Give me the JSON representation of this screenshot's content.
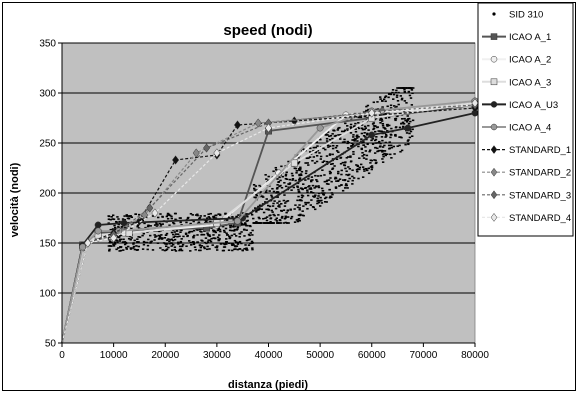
{
  "chart_data": {
    "type": "scatter",
    "title": "speed (nodi)",
    "xlabel": "distanza (piedi)",
    "ylabel": "velocità (nodi)",
    "xlim": [
      0,
      80000
    ],
    "ylim": [
      50,
      350
    ],
    "xticks": [
      0,
      10000,
      20000,
      30000,
      40000,
      50000,
      60000,
      70000,
      80000
    ],
    "yticks": [
      50,
      100,
      150,
      200,
      250,
      300,
      350
    ],
    "grid": "horizontal",
    "plot_background": "#c0c0c0",
    "legend_position": "right",
    "scatter": {
      "name": "SID 310",
      "color": "#000000",
      "clusters": [
        {
          "x_range": [
            9000,
            37000
          ],
          "y_range": [
            142,
            180
          ]
        },
        {
          "x_range": [
            37000,
            68000
          ],
          "y_range": [
            170,
            305
          ],
          "trend": [
            [
              37000,
              175
            ],
            [
              68000,
              285
            ]
          ]
        }
      ]
    },
    "series": [
      {
        "name": "ICAO A_1",
        "color": "#555555",
        "style": "solid",
        "marker": "square",
        "points": [
          [
            0,
            50
          ],
          [
            4000,
            148
          ],
          [
            7000,
            160
          ],
          [
            12000,
            162
          ],
          [
            28000,
            165
          ],
          [
            34000,
            170
          ],
          [
            40000,
            262
          ],
          [
            80000,
            288
          ]
        ]
      },
      {
        "name": "ICAO A_2",
        "color": "#f0f0f0",
        "style": "solid",
        "marker": "circle",
        "points": [
          [
            0,
            50
          ],
          [
            4000,
            145
          ],
          [
            7000,
            155
          ],
          [
            12000,
            160
          ],
          [
            30000,
            168
          ],
          [
            42000,
            220
          ],
          [
            55000,
            278
          ],
          [
            80000,
            288
          ]
        ]
      },
      {
        "name": "ICAO A_3",
        "color": "#dddddd",
        "style": "solid",
        "marker": "square",
        "points": [
          [
            0,
            50
          ],
          [
            4000,
            146
          ],
          [
            7000,
            158
          ],
          [
            13000,
            160
          ],
          [
            30000,
            170
          ],
          [
            45000,
            230
          ],
          [
            60000,
            275
          ],
          [
            80000,
            290
          ]
        ]
      },
      {
        "name": "ICAO A_U3",
        "color": "#222222",
        "style": "solid",
        "marker": "circle",
        "points": [
          [
            0,
            50
          ],
          [
            4000,
            148
          ],
          [
            7000,
            168
          ],
          [
            12000,
            170
          ],
          [
            35000,
            175
          ],
          [
            60000,
            258
          ],
          [
            67000,
            265
          ],
          [
            80000,
            280
          ]
        ]
      },
      {
        "name": "ICAO A_4",
        "color": "#999999",
        "style": "solid",
        "marker": "circle",
        "points": [
          [
            0,
            50
          ],
          [
            4000,
            146
          ],
          [
            7000,
            162
          ],
          [
            11000,
            162
          ],
          [
            34000,
            172
          ],
          [
            50000,
            265
          ],
          [
            60000,
            282
          ],
          [
            80000,
            292
          ]
        ]
      },
      {
        "name": "STANDARD_1",
        "color": "#111111",
        "style": "dashed",
        "marker": "diamond",
        "points": [
          [
            0,
            50
          ],
          [
            5000,
            150
          ],
          [
            10000,
            160
          ],
          [
            15000,
            172
          ],
          [
            22000,
            233
          ],
          [
            30000,
            238
          ],
          [
            34000,
            268
          ],
          [
            45000,
            272
          ],
          [
            80000,
            285
          ]
        ]
      },
      {
        "name": "STANDARD_2",
        "color": "#888888",
        "style": "dashed",
        "marker": "diamond",
        "points": [
          [
            0,
            50
          ],
          [
            5000,
            150
          ],
          [
            10000,
            158
          ],
          [
            16000,
            178
          ],
          [
            26000,
            240
          ],
          [
            38000,
            270
          ],
          [
            60000,
            280
          ],
          [
            80000,
            290
          ]
        ]
      },
      {
        "name": "STANDARD_3",
        "color": "#666666",
        "style": "dashed",
        "marker": "diamond",
        "points": [
          [
            0,
            50
          ],
          [
            5000,
            150
          ],
          [
            10000,
            158
          ],
          [
            17000,
            185
          ],
          [
            28000,
            245
          ],
          [
            40000,
            270
          ],
          [
            62000,
            282
          ],
          [
            80000,
            288
          ]
        ]
      },
      {
        "name": "STANDARD_4",
        "color": "#e8e8e8",
        "style": "dashed",
        "marker": "diamond",
        "points": [
          [
            0,
            50
          ],
          [
            5000,
            150
          ],
          [
            10000,
            155
          ],
          [
            18000,
            180
          ],
          [
            30000,
            240
          ],
          [
            40000,
            265
          ],
          [
            60000,
            280
          ],
          [
            80000,
            290
          ]
        ]
      }
    ]
  }
}
